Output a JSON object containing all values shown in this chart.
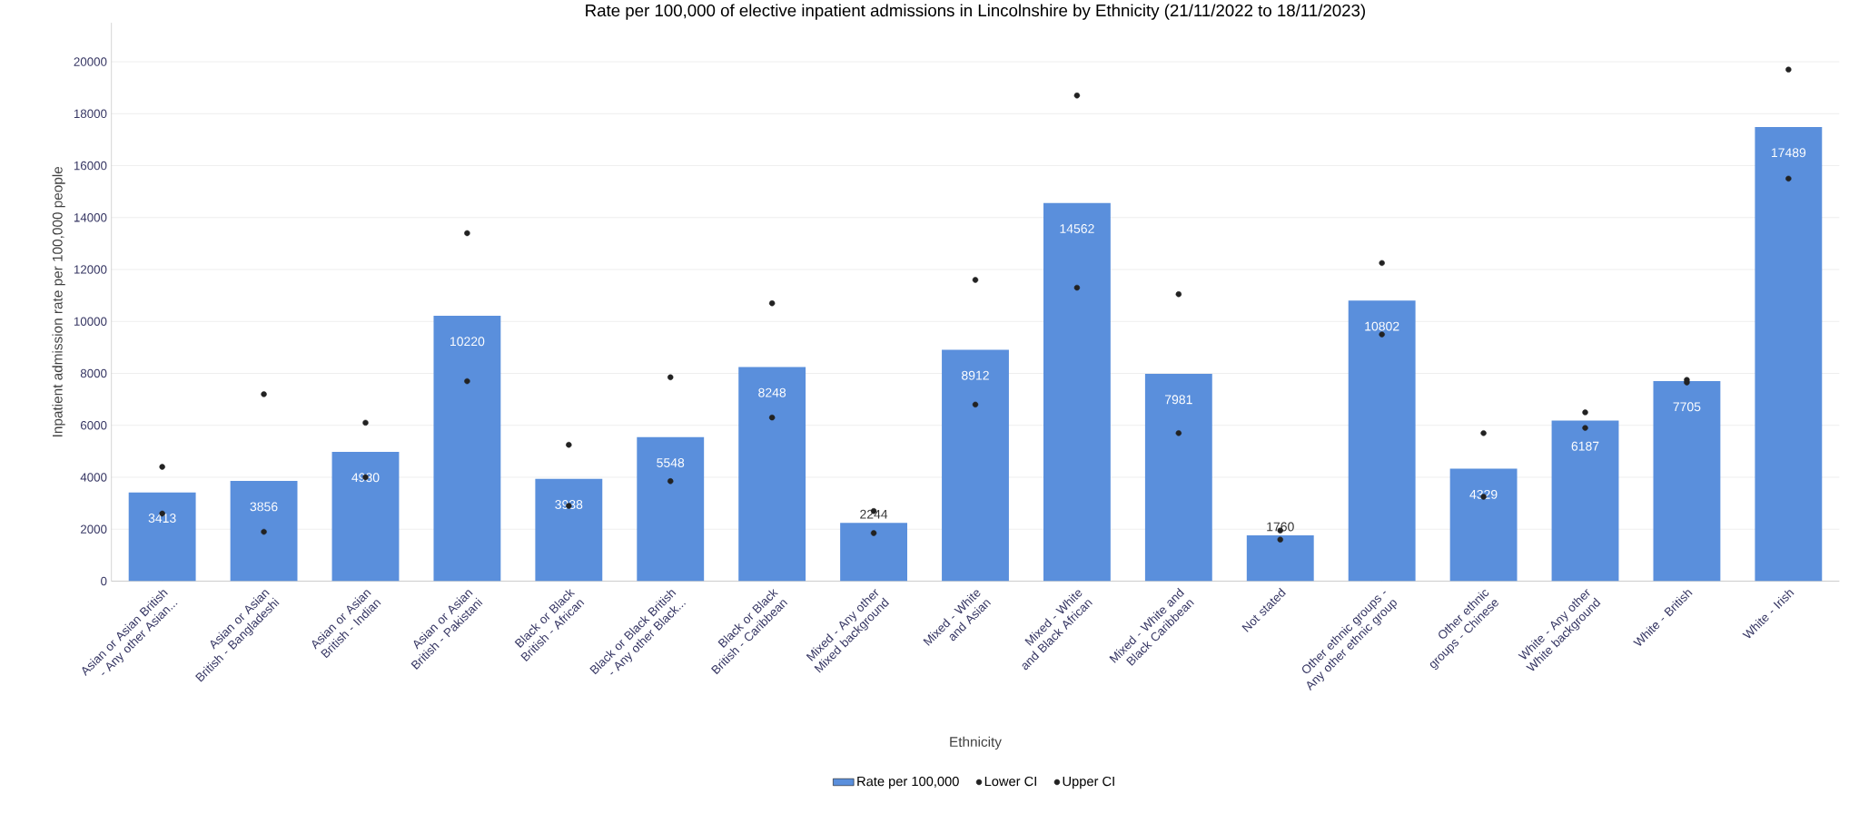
{
  "chart_data": {
    "type": "bar",
    "title": "Rate per 100,000 of elective inpatient admissions in Lincolnshire by Ethnicity (21/11/2022 to 18/11/2023)",
    "xlabel": "Ethnicity",
    "ylabel": "Inpatient admission rate per 100,000 people",
    "categories": [
      "Asian or Asian British - Any other Asian...",
      "Asian or Asian British - Bangladeshi",
      "Asian or Asian British - Indian",
      "Asian or Asian British - Pakistani",
      "Black or Black British - African",
      "Black or Black British - Any other Black...",
      "Black or Black British - Caribbean",
      "Mixed - Any other Mixed background",
      "Mixed - White and Asian",
      "Mixed - White and Black African",
      "Mixed - White and Black Caribbean",
      "Not stated",
      "Other ethnic groups - Any other ethnic group",
      "Other ethnic groups - Chinese",
      "White - Any other White background",
      "White - British",
      "White - Irish"
    ],
    "series": [
      {
        "name": "Rate per 100,000",
        "color": "#5a8fdc",
        "values": [
          3413,
          3856,
          4980,
          10220,
          3938,
          5548,
          8248,
          2244,
          8912,
          14562,
          7981,
          1760,
          10802,
          4329,
          6187,
          7705,
          17489
        ],
        "value_labels": [
          "3413",
          "3856",
          "4980",
          "10220",
          "3938",
          "5548",
          "8248",
          "2244",
          "8912",
          "14562",
          "7981",
          "1760",
          "10802",
          "4329",
          "6187",
          "7705",
          "17489"
        ]
      },
      {
        "name": "Lower CI",
        "type": "scatter",
        "color": "#222222",
        "values": [
          2600,
          1900,
          4000,
          7700,
          2900,
          3850,
          6300,
          1850,
          6800,
          11300,
          5700,
          1600,
          9500,
          3250,
          5900,
          7650,
          15500
        ]
      },
      {
        "name": "Upper CI",
        "type": "scatter",
        "color": "#222222",
        "values": [
          4400,
          7200,
          6100,
          13400,
          5250,
          7850,
          10700,
          2700,
          11600,
          18700,
          11050,
          1950,
          12250,
          5700,
          6500,
          7750,
          19700
        ]
      }
    ],
    "ylim": [
      0,
      21500
    ],
    "yticks": [
      0,
      2000,
      4000,
      6000,
      8000,
      10000,
      12000,
      14000,
      16000,
      18000,
      20000
    ],
    "grid": "y",
    "legend": "bottom"
  }
}
